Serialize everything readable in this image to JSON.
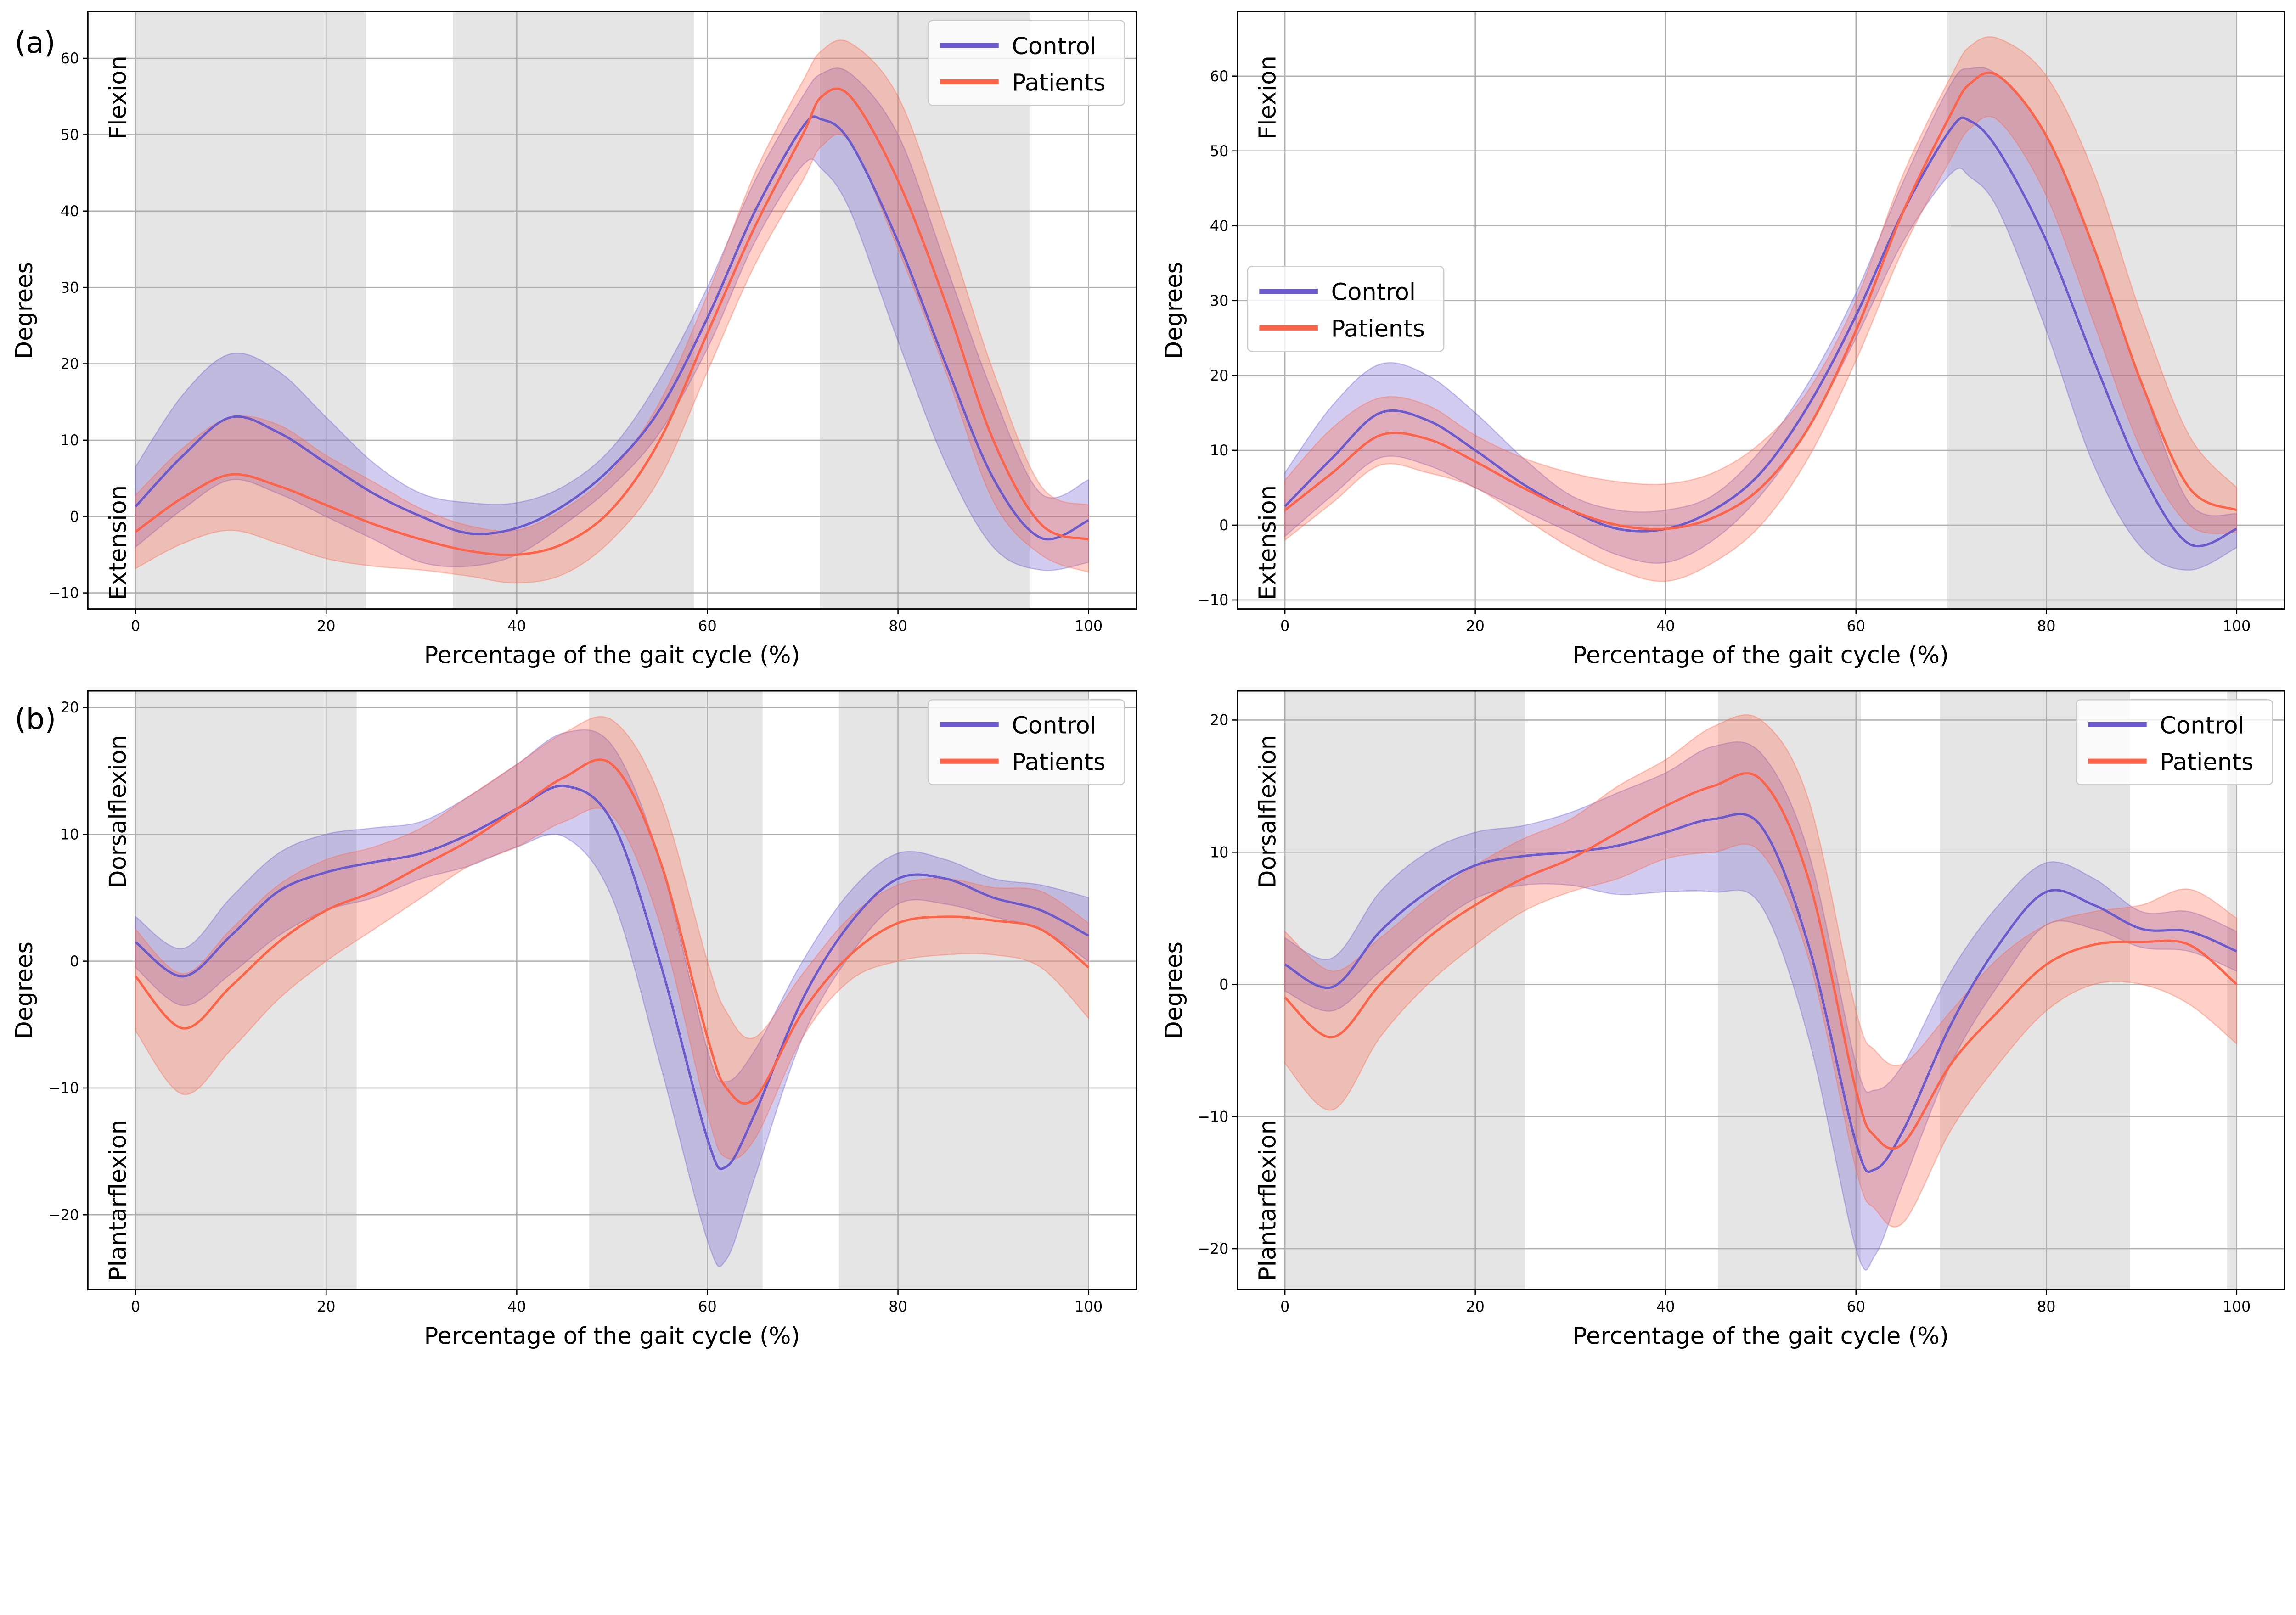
{
  "colors": {
    "control": "#6a5acd",
    "patients": "#ff6347",
    "phase": "#e5e5e5",
    "grid": "#b0b0b0"
  },
  "panel_labels": [
    "(a)",
    "(b)"
  ],
  "chart_data": [
    {
      "type": "line",
      "xlabel": "Percentage of the gait cycle (%)",
      "ylabel": "Degrees",
      "top_label": "Flexion",
      "bottom_label": "Extension",
      "xlim": [
        -5,
        105
      ],
      "ylim": [
        -12.1,
        66.1
      ],
      "xticks": [
        0,
        20,
        40,
        60,
        80,
        100
      ],
      "yticks": [
        -10,
        0,
        10,
        20,
        30,
        40,
        50,
        60
      ],
      "grid": true,
      "legend": "top-right",
      "phases": [
        [
          0,
          24.2
        ],
        [
          33.3,
          58.6
        ],
        [
          71.8,
          93.9
        ]
      ],
      "x": [
        0,
        5,
        10,
        15,
        20,
        25,
        30,
        35,
        40,
        45,
        50,
        55,
        60,
        65,
        70,
        72,
        75,
        80,
        85,
        90,
        95,
        100
      ],
      "series": [
        {
          "name": "Control",
          "mean": [
            1.3,
            8,
            13,
            11,
            7,
            3,
            0,
            -2.2,
            -1.5,
            1.5,
            6.5,
            14,
            26,
            40,
            51,
            52,
            49,
            36,
            20,
            5,
            -2.8,
            -0.5
          ],
          "upper": [
            6.5,
            16,
            21.3,
            19,
            13,
            7,
            3,
            1.8,
            1.8,
            4,
            9,
            18,
            30,
            44,
            55,
            58,
            58,
            50,
            33,
            16,
            3,
            4.8
          ],
          "lower": [
            -4,
            1,
            4.8,
            3,
            0,
            -3,
            -6,
            -6.5,
            -5,
            -1,
            4,
            11,
            22,
            36,
            46,
            45.5,
            40,
            23,
            7,
            -4,
            -7,
            -6
          ]
        },
        {
          "name": "Patients",
          "mean": [
            -2,
            2.5,
            5.5,
            4,
            1.5,
            -1,
            -3,
            -4.5,
            -5,
            -3.5,
            1,
            10,
            24,
            38,
            50,
            55,
            55,
            44,
            28,
            10,
            -1,
            -3
          ],
          "upper": [
            2.8,
            9,
            13,
            12,
            8,
            4.5,
            1,
            -1.2,
            -1.8,
            1,
            6,
            15,
            29,
            45,
            57,
            61,
            62,
            55,
            38,
            19,
            4,
            1.5
          ],
          "lower": [
            -6.8,
            -3.5,
            -1.8,
            -3.5,
            -5.5,
            -6.5,
            -7,
            -7.8,
            -8.7,
            -7.5,
            -3,
            5,
            19,
            33,
            44,
            48.5,
            49,
            35,
            19,
            2,
            -5,
            -7.3
          ]
        }
      ]
    },
    {
      "type": "line",
      "xlabel": "Percentage of the gait cycle (%)",
      "ylabel": "Degrees",
      "top_label": "Flexion",
      "bottom_label": "Extension",
      "xlim": [
        -5,
        105
      ],
      "ylim": [
        -11.2,
        68.6
      ],
      "xticks": [
        0,
        20,
        40,
        60,
        80,
        100
      ],
      "yticks": [
        -10,
        0,
        10,
        20,
        30,
        40,
        50,
        60
      ],
      "grid": true,
      "legend": "center-left",
      "phases": [
        [
          69.6,
          100
        ]
      ],
      "x": [
        0,
        5,
        10,
        15,
        20,
        25,
        30,
        35,
        40,
        45,
        50,
        55,
        60,
        65,
        70,
        72,
        75,
        80,
        85,
        90,
        95,
        100
      ],
      "series": [
        {
          "name": "Control",
          "mean": [
            2.5,
            9,
            15,
            14,
            10,
            5.5,
            2,
            -0.5,
            -0.5,
            2,
            7,
            16,
            28,
            42,
            53,
            54,
            50,
            38,
            22,
            7,
            -2.5,
            -0.5
          ],
          "upper": [
            7,
            16,
            21.5,
            20,
            15,
            9,
            4,
            2,
            2,
            4,
            10,
            19,
            31,
            46,
            59,
            61,
            60,
            52,
            37,
            19,
            3,
            1.5
          ],
          "lower": [
            -1.5,
            4,
            9,
            8,
            5,
            2,
            -1,
            -4,
            -5,
            -2,
            4,
            13,
            25,
            38,
            47,
            46.5,
            42,
            26,
            8,
            -3,
            -6,
            -3
          ]
        },
        {
          "name": "Patients",
          "mean": [
            2,
            7,
            12,
            11.5,
            8.5,
            5,
            2,
            0,
            -0.5,
            1,
            5,
            13,
            26,
            42,
            55,
            59,
            60,
            52,
            37,
            19,
            5,
            2
          ],
          "upper": [
            6,
            13,
            17,
            16,
            12,
            9,
            7,
            5.8,
            5.5,
            7,
            11,
            18,
            30,
            47,
            60,
            64,
            65,
            60,
            47,
            28,
            12,
            5
          ],
          "lower": [
            -2,
            3,
            8,
            7,
            5,
            1,
            -3,
            -6,
            -7.5,
            -5,
            0,
            9,
            22,
            37,
            49,
            53,
            54,
            44,
            27,
            10,
            0,
            -1
          ]
        }
      ]
    },
    {
      "type": "line",
      "xlabel": "Percentage of the gait cycle (%)",
      "ylabel": "Degrees",
      "top_label": "Dorsalflexion",
      "bottom_label": "Plantarflexion",
      "xlim": [
        -5,
        105
      ],
      "ylim": [
        -25.9,
        21.3
      ],
      "xticks": [
        0,
        20,
        40,
        60,
        80,
        100
      ],
      "yticks": [
        -20,
        -10,
        0,
        10,
        20
      ],
      "grid": true,
      "legend": "top-right",
      "phases": [
        [
          0,
          23.2
        ],
        [
          47.6,
          65.8
        ],
        [
          73.8,
          100
        ]
      ],
      "x": [
        0,
        5,
        10,
        15,
        20,
        25,
        30,
        35,
        40,
        45,
        50,
        55,
        60,
        62,
        65,
        70,
        75,
        80,
        85,
        90,
        95,
        100
      ],
      "series": [
        {
          "name": "Control",
          "mean": [
            1.5,
            -1.2,
            2,
            5.5,
            7,
            7.8,
            8.5,
            10,
            12,
            13.8,
            11,
            0,
            -14,
            -16.2,
            -12,
            -3,
            3,
            6.5,
            6.5,
            5,
            4,
            2
          ],
          "upper": [
            3.5,
            1,
            5,
            8.5,
            10,
            10.5,
            11,
            13,
            15.5,
            18,
            17,
            8,
            -7,
            -9.5,
            -7,
            0,
            5.5,
            8.5,
            8,
            6.5,
            6,
            5
          ],
          "lower": [
            -0.5,
            -3.5,
            -1,
            2,
            4,
            5,
            6.5,
            7.5,
            9,
            9.8,
            5,
            -8,
            -22,
            -23.5,
            -17,
            -6,
            0.5,
            4.5,
            4.5,
            3.5,
            2.5,
            0
          ]
        },
        {
          "name": "Patients",
          "mean": [
            -1.2,
            -5.3,
            -2,
            1.5,
            4,
            5.5,
            7.5,
            9.5,
            12,
            14.5,
            15.5,
            8,
            -6,
            -10,
            -10.8,
            -4,
            0.5,
            3,
            3.5,
            3.2,
            2.5,
            -0.5
          ],
          "upper": [
            2.5,
            -1,
            2.5,
            6,
            8,
            9,
            10.5,
            13,
            15.5,
            18,
            19,
            13,
            0,
            -4,
            -6,
            -1,
            3.5,
            6,
            6.5,
            5.8,
            5.5,
            3
          ],
          "lower": [
            -5.5,
            -10.5,
            -7,
            -3,
            0,
            2.5,
            5,
            7.5,
            9,
            11,
            11.5,
            3,
            -12,
            -15.5,
            -14,
            -6,
            -1.5,
            0,
            0.5,
            0.5,
            -0.5,
            -4.5
          ]
        }
      ]
    },
    {
      "type": "line",
      "xlabel": "Percentage of the gait cycle (%)",
      "ylabel": "Degrees",
      "top_label": "Dorsalflexion",
      "bottom_label": "Plantarflexion",
      "xlim": [
        -5,
        105
      ],
      "ylim": [
        -23.1,
        22.2
      ],
      "xticks": [
        0,
        20,
        40,
        60,
        80,
        100
      ],
      "yticks": [
        -20,
        -10,
        0,
        10,
        20
      ],
      "grid": true,
      "legend": "top-right",
      "phases": [
        [
          0,
          25.2
        ],
        [
          45.5,
          60.5
        ],
        [
          68.8,
          88.8
        ],
        [
          99,
          100
        ]
      ],
      "x": [
        0,
        5,
        10,
        15,
        20,
        25,
        30,
        35,
        40,
        45,
        50,
        55,
        60,
        62,
        65,
        70,
        75,
        80,
        85,
        90,
        95,
        100
      ],
      "series": [
        {
          "name": "Control",
          "mean": [
            1.5,
            -0.2,
            4,
            7,
            9,
            9.7,
            10,
            10.5,
            11.5,
            12.5,
            12,
            3,
            -12,
            -14,
            -11,
            -3,
            3,
            7,
            6,
            4.2,
            4,
            2.5
          ],
          "upper": [
            3.5,
            2,
            7,
            10,
            11.5,
            12,
            13,
            14.5,
            16,
            18,
            17.5,
            10,
            -6,
            -8,
            -6,
            1,
            6,
            9.2,
            8,
            5.5,
            5.5,
            4
          ],
          "lower": [
            -0.5,
            -2,
            1,
            4,
            6.5,
            7.5,
            7.5,
            6.8,
            7,
            7,
            6,
            -4,
            -20,
            -20.5,
            -15,
            -6,
            0,
            4.5,
            4.2,
            2.8,
            2.5,
            1
          ]
        },
        {
          "name": "Patients",
          "mean": [
            -1,
            -4,
            0,
            3.5,
            6,
            8,
            9.5,
            11.5,
            13.5,
            15,
            15.5,
            8,
            -8,
            -11.5,
            -12,
            -6,
            -2,
            1.5,
            3,
            3.2,
            3,
            0
          ],
          "upper": [
            4,
            1,
            3.5,
            6.5,
            9,
            11,
            12.5,
            15,
            17,
            19.5,
            20,
            14,
            -2,
            -5,
            -6,
            -2,
            2,
            4.5,
            5.5,
            6,
            7.2,
            5
          ],
          "lower": [
            -6,
            -9.5,
            -4,
            0,
            3,
            5.5,
            7,
            8,
            9.5,
            10,
            10,
            2,
            -14,
            -17,
            -18,
            -11,
            -6,
            -2,
            0,
            0,
            -1.5,
            -4.5
          ]
        }
      ]
    }
  ]
}
